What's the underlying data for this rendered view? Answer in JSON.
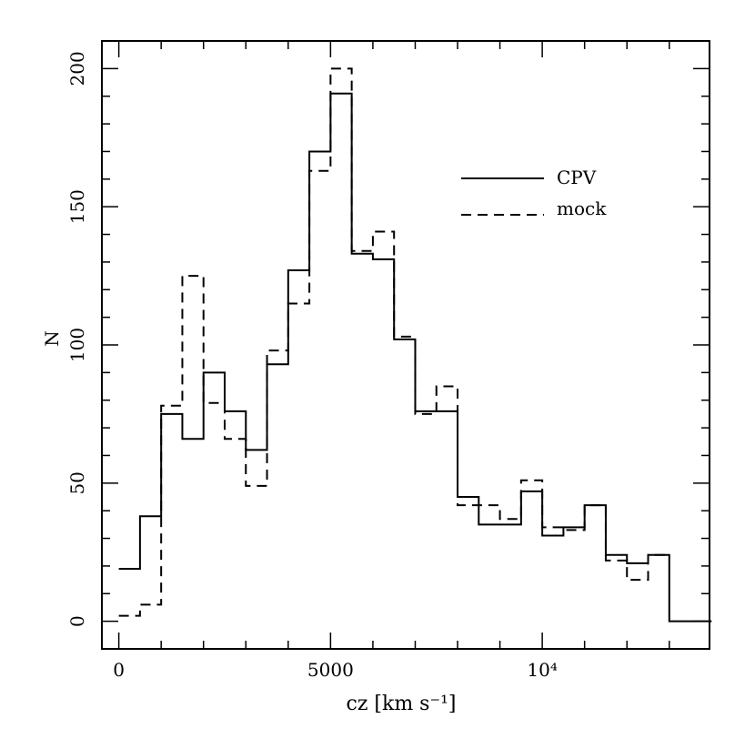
{
  "chart_data": {
    "type": "histogram",
    "xlabel": "cz [km s⁻¹]",
    "ylabel": "N",
    "xlim": [
      -400,
      13950
    ],
    "ylim": [
      -10,
      210
    ],
    "bin_width": 500,
    "x_ticks": [
      {
        "value": 0,
        "label": "0"
      },
      {
        "value": 5000,
        "label": "5000"
      },
      {
        "value": 10000,
        "label": "10⁴"
      }
    ],
    "y_ticks": [
      {
        "value": 0,
        "label": "0"
      },
      {
        "value": 50,
        "label": "50"
      },
      {
        "value": 100,
        "label": "100"
      },
      {
        "value": 150,
        "label": "150"
      },
      {
        "value": 200,
        "label": "200"
      }
    ],
    "legend_position": "top-right",
    "series": [
      {
        "name": "CPV",
        "style": "solid",
        "bin_start": 0,
        "values": [
          19,
          38,
          75,
          66,
          90,
          76,
          62,
          93,
          127,
          170,
          191,
          133,
          131,
          102,
          76,
          76,
          45,
          35,
          35,
          47,
          31,
          34,
          42,
          24,
          21,
          24,
          0,
          0
        ]
      },
      {
        "name": "mock",
        "style": "dashed",
        "bin_start": 0,
        "values": [
          2,
          6,
          78,
          125,
          79,
          66,
          49,
          98,
          115,
          163,
          200,
          134,
          141,
          103,
          75,
          85,
          42,
          42,
          37,
          51,
          34,
          33,
          42,
          22,
          15,
          24
        ]
      }
    ]
  }
}
